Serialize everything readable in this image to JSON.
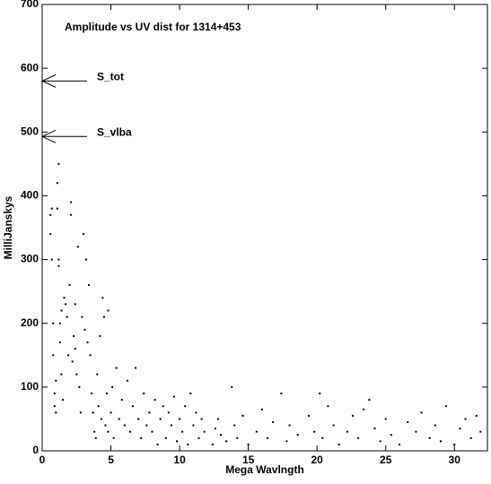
{
  "chart_data": {
    "type": "scatter",
    "title": "Amplitude vs UV dist for 1314+453",
    "x_label": "Mega Wavlngth",
    "y_label": "MilliJanskys",
    "color": "#000000",
    "xlim": [
      0,
      32.4
    ],
    "ylim": [
      0,
      700
    ],
    "xticks": [
      0,
      5,
      10,
      15,
      20,
      25,
      30
    ],
    "yticks": [
      0,
      100,
      200,
      300,
      400,
      500,
      600,
      700
    ],
    "annotations": [
      {
        "text": "S_tot",
        "y": 580
      },
      {
        "text": "S_vlba",
        "y": 493
      }
    ],
    "x": [
      0.6,
      0.6,
      0.7,
      0.7,
      0.8,
      0.8,
      0.9,
      0.9,
      1.0,
      1.0,
      1.1,
      1.1,
      1.2,
      1.2,
      1.2,
      1.3,
      1.3,
      1.4,
      1.4,
      1.5,
      1.6,
      1.7,
      1.8,
      1.9,
      2.0,
      2.1,
      2.1,
      2.2,
      2.3,
      2.4,
      2.5,
      2.6,
      2.7,
      2.8,
      2.9,
      3.0,
      3.1,
      3.2,
      3.3,
      3.4,
      3.5,
      3.6,
      3.7,
      3.8,
      3.9,
      4.0,
      4.1,
      4.2,
      4.3,
      4.4,
      4.5,
      4.6,
      4.7,
      4.8,
      5.0,
      5.1,
      5.2,
      5.4,
      5.6,
      5.8,
      6.0,
      6.2,
      6.4,
      6.6,
      6.8,
      7.0,
      7.2,
      7.4,
      7.6,
      7.8,
      8.0,
      8.2,
      8.4,
      8.6,
      8.8,
      9.0,
      9.2,
      9.4,
      9.6,
      9.8,
      10.0,
      10.2,
      10.4,
      10.6,
      10.8,
      11.0,
      11.2,
      11.4,
      11.6,
      11.8,
      12.4,
      12.6,
      12.8,
      13.0,
      13.4,
      13.8,
      14.0,
      14.2,
      14.6,
      15.0,
      15.6,
      16.0,
      16.4,
      16.8,
      17.4,
      17.8,
      18.0,
      18.6,
      19.4,
      19.8,
      20.2,
      20.4,
      20.8,
      21.2,
      21.6,
      22.2,
      22.6,
      23.0,
      23.4,
      23.8,
      24.2,
      24.6,
      25.0,
      25.4,
      26.0,
      26.6,
      27.2,
      27.6,
      28.2,
      28.6,
      29.0,
      29.4,
      30.0,
      30.4,
      30.8,
      31.2,
      31.6,
      31.9,
      4.8,
      2.4
    ],
    "values": [
      370,
      340,
      380,
      300,
      150,
      200,
      90,
      70,
      60,
      110,
      420,
      380,
      450,
      300,
      290,
      200,
      170,
      220,
      120,
      80,
      240,
      230,
      210,
      150,
      260,
      390,
      370,
      140,
      180,
      160,
      120,
      320,
      100,
      60,
      210,
      340,
      190,
      300,
      170,
      260,
      150,
      90,
      60,
      30,
      20,
      120,
      70,
      180,
      50,
      240,
      210,
      40,
      90,
      30,
      60,
      100,
      20,
      130,
      50,
      80,
      40,
      110,
      30,
      70,
      130,
      50,
      20,
      90,
      40,
      60,
      30,
      80,
      10,
      50,
      70,
      20,
      60,
      40,
      85,
      15,
      50,
      30,
      70,
      10,
      90,
      40,
      60,
      20,
      50,
      30,
      10,
      35,
      50,
      25,
      15,
      100,
      40,
      20,
      55,
      10,
      30,
      65,
      20,
      45,
      90,
      15,
      40,
      25,
      55,
      30,
      90,
      20,
      70,
      40,
      10,
      30,
      55,
      20,
      65,
      80,
      35,
      15,
      50,
      25,
      10,
      45,
      30,
      60,
      20,
      40,
      15,
      70,
      10,
      35,
      50,
      20,
      55,
      30,
      220,
      230
    ]
  }
}
